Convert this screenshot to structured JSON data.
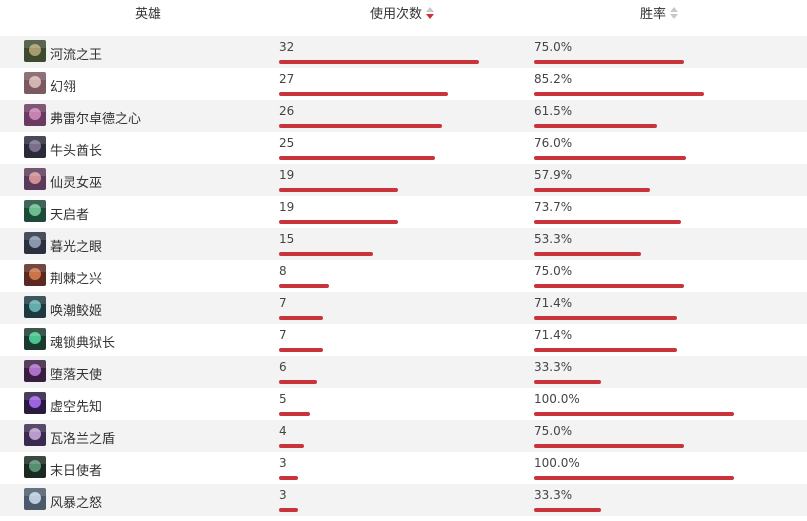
{
  "headers": {
    "hero": "英雄",
    "uses": "使用次数",
    "winrate": "胜率"
  },
  "sort": {
    "column": "uses",
    "direction": "desc"
  },
  "colors": {
    "bar": "#c9343b",
    "alt_row": "#f3f3f3"
  },
  "max_uses": 32,
  "heroes": [
    {
      "name": "河流之王",
      "uses": "32",
      "uses_value": 32,
      "winrate": "75.0%",
      "winrate_value": 75.0,
      "avatar_color": "#3e4a30",
      "avatar_accent": "#b9a97a"
    },
    {
      "name": "幻翎",
      "uses": "27",
      "uses_value": 27,
      "winrate": "85.2%",
      "winrate_value": 85.2,
      "avatar_color": "#7a5a60",
      "avatar_accent": "#e2c4c0"
    },
    {
      "name": "弗雷尔卓德之心",
      "uses": "26",
      "uses_value": 26,
      "winrate": "61.5%",
      "winrate_value": 61.5,
      "avatar_color": "#6a3a60",
      "avatar_accent": "#d88fc0"
    },
    {
      "name": "牛头酋长",
      "uses": "25",
      "uses_value": 25,
      "winrate": "76.0%",
      "winrate_value": 76.0,
      "avatar_color": "#2a2a3a",
      "avatar_accent": "#8a7a9a"
    },
    {
      "name": "仙灵女巫",
      "uses": "19",
      "uses_value": 19,
      "winrate": "57.9%",
      "winrate_value": 57.9,
      "avatar_color": "#5a3a5a",
      "avatar_accent": "#e6a0a0"
    },
    {
      "name": "天启者",
      "uses": "19",
      "uses_value": 19,
      "winrate": "73.7%",
      "winrate_value": 73.7,
      "avatar_color": "#1e4a3a",
      "avatar_accent": "#7ad0a0"
    },
    {
      "name": "暮光之眼",
      "uses": "15",
      "uses_value": 15,
      "winrate": "53.3%",
      "winrate_value": 53.3,
      "avatar_color": "#2a3040",
      "avatar_accent": "#9aa8c0"
    },
    {
      "name": "荆棘之兴",
      "uses": "8",
      "uses_value": 8,
      "winrate": "75.0%",
      "winrate_value": 75.0,
      "avatar_color": "#5a2a20",
      "avatar_accent": "#e08050"
    },
    {
      "name": "唤潮鲛姬",
      "uses": "7",
      "uses_value": 7,
      "winrate": "71.4%",
      "winrate_value": 71.4,
      "avatar_color": "#1e3a40",
      "avatar_accent": "#70c0c0"
    },
    {
      "name": "魂锁典狱长",
      "uses": "7",
      "uses_value": 7,
      "winrate": "71.4%",
      "winrate_value": 71.4,
      "avatar_color": "#1a3a30",
      "avatar_accent": "#50e0a0"
    },
    {
      "name": "堕落天使",
      "uses": "6",
      "uses_value": 6,
      "winrate": "33.3%",
      "winrate_value": 33.3,
      "avatar_color": "#3a1e40",
      "avatar_accent": "#c080e0"
    },
    {
      "name": "虚空先知",
      "uses": "5",
      "uses_value": 5,
      "winrate": "100.0%",
      "winrate_value": 100.0,
      "avatar_color": "#2a1a40",
      "avatar_accent": "#b070ff"
    },
    {
      "name": "瓦洛兰之盾",
      "uses": "4",
      "uses_value": 4,
      "winrate": "75.0%",
      "winrate_value": 75.0,
      "avatar_color": "#3a2a50",
      "avatar_accent": "#d0b0e0"
    },
    {
      "name": "末日使者",
      "uses": "3",
      "uses_value": 3,
      "winrate": "100.0%",
      "winrate_value": 100.0,
      "avatar_color": "#1a2a20",
      "avatar_accent": "#60a080"
    },
    {
      "name": "风暴之怒",
      "uses": "3",
      "uses_value": 3,
      "winrate": "33.3%",
      "winrate_value": 33.3,
      "avatar_color": "#4a5a6a",
      "avatar_accent": "#d0e0f0"
    }
  ]
}
